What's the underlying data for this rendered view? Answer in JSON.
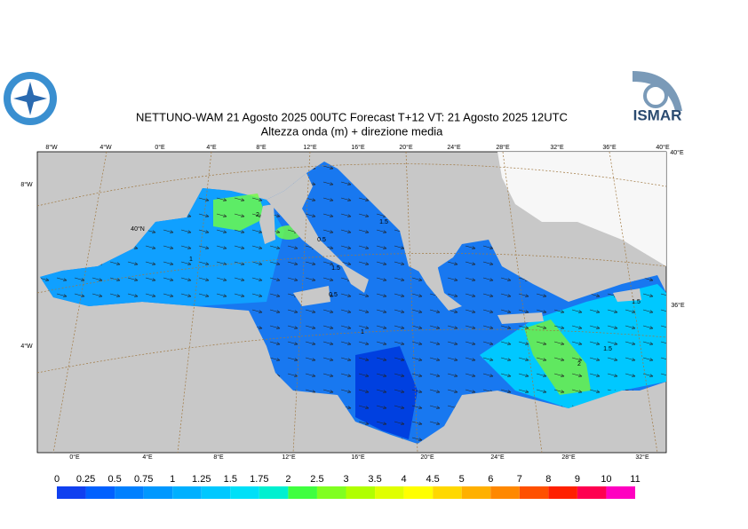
{
  "header": {
    "title": "NETTUNO-WAM  21   Agosto  2025 00UTC Forecast T+12 VT: 21   Agosto  2025 12UTC",
    "subtitle": "Altezza onda (m) + direzione media"
  },
  "logo": {
    "text": "ISMAR"
  },
  "map": {
    "top_lon_labels": [
      "8°W",
      "4°W",
      "0°E",
      "4°E",
      "8°E",
      "12°E",
      "16°E",
      "20°E",
      "24°E",
      "28°E",
      "32°E",
      "36°E",
      "40°E"
    ],
    "bottom_lon_labels": [
      "0°E",
      "4°E",
      "8°E",
      "12°E",
      "16°E",
      "20°E",
      "24°E",
      "28°E",
      "32°E"
    ],
    "left_labels": [
      "8°W",
      "40°N",
      "4°W"
    ],
    "right_labels": [
      "40°E",
      "36°E"
    ],
    "contour_labels": [
      "2",
      "1",
      "1.5",
      "0.5",
      "1.5",
      "1",
      "0.5",
      "1.5",
      "2",
      "1.5"
    ]
  },
  "legend": {
    "labels": [
      "0",
      "0.25",
      "0.5",
      "0.75",
      "1",
      "1.25",
      "1.5",
      "1.75",
      "2",
      "2.5",
      "3",
      "3.5",
      "4",
      "4.5",
      "5",
      "6",
      "7",
      "8",
      "9",
      "10",
      "11"
    ],
    "colors": [
      "#1040f0",
      "#0060ff",
      "#0080ff",
      "#0098ff",
      "#00b0ff",
      "#00c8ff",
      "#00e0f8",
      "#00f0d0",
      "#40ff40",
      "#80ff20",
      "#b0ff00",
      "#e0ff00",
      "#ffff00",
      "#ffd800",
      "#ffb000",
      "#ff8800",
      "#ff5000",
      "#ff2000",
      "#ff0050",
      "#ff00c0"
    ]
  }
}
